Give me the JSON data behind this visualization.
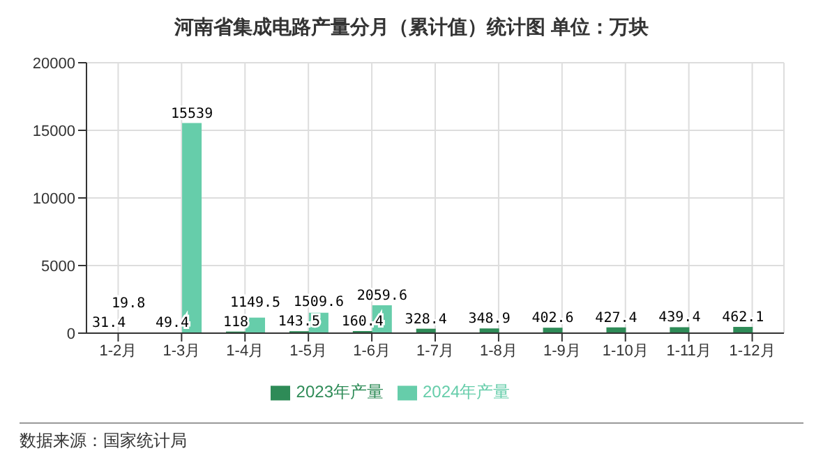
{
  "chart_data": {
    "type": "bar",
    "title": "河南省集成电路产量分月（累计值）统计图 单位：万块",
    "categories": [
      "1-2月",
      "1-3月",
      "1-4月",
      "1-5月",
      "1-6月",
      "1-7月",
      "1-8月",
      "1-9月",
      "1-10月",
      "1-11月",
      "1-12月"
    ],
    "series": [
      {
        "name": "2023年产量",
        "color": "#2e8b57",
        "values": [
          31.4,
          49.4,
          118,
          143.5,
          160.4,
          328.4,
          348.9,
          402.6,
          427.4,
          439.4,
          462.1
        ]
      },
      {
        "name": "2024年产量",
        "color": "#66cdaa",
        "values": [
          19.8,
          15539,
          1149.5,
          1509.6,
          2059.6,
          null,
          null,
          null,
          null,
          null,
          null
        ]
      }
    ],
    "ylim": [
      0,
      20000
    ],
    "yticks": [
      0,
      5000,
      10000,
      15000,
      20000
    ],
    "grid": true,
    "legend": "bottom",
    "data_labels": true,
    "annotations": [
      "数据来源：国家统计局"
    ]
  }
}
